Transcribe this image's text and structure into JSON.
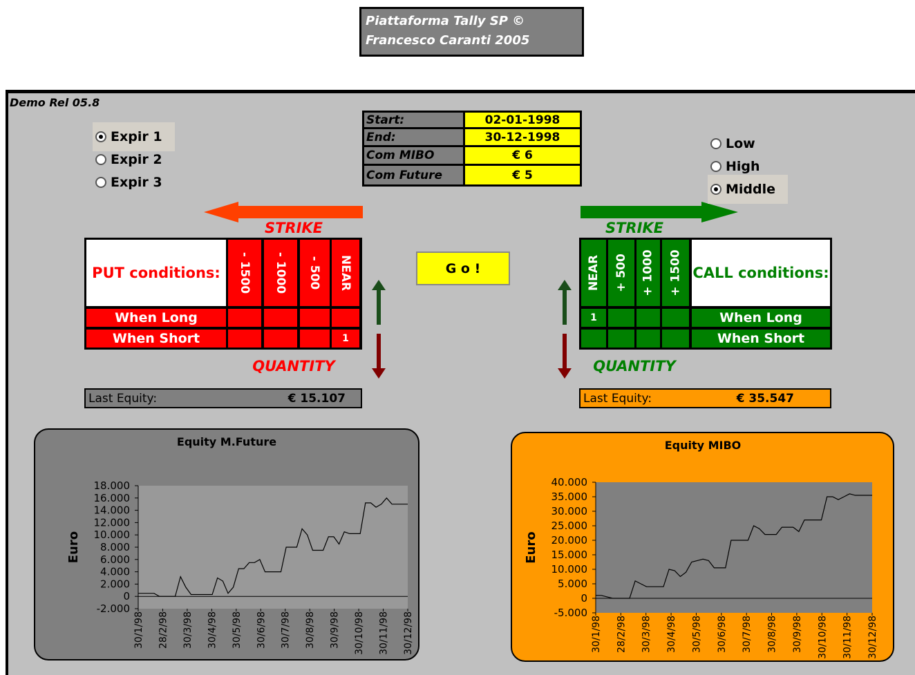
{
  "header": {
    "line1": "Piattaforma Tally SP ©",
    "line2": "Francesco Caranti 2005"
  },
  "release": "Demo Rel 05.8",
  "expiry_options": [
    {
      "label": "Expir 1",
      "selected": true
    },
    {
      "label": "Expir 2",
      "selected": false
    },
    {
      "label": "Expir 3",
      "selected": false
    }
  ],
  "strike_mode_options": [
    {
      "label": "Low",
      "selected": false
    },
    {
      "label": "High",
      "selected": false
    },
    {
      "label": "Middle",
      "selected": true
    }
  ],
  "settings": [
    {
      "label": "Start:",
      "value": "02-01-1998"
    },
    {
      "label": "End:",
      "value": "30-12-1998"
    },
    {
      "label": "Com MIBO",
      "value": "€ 6"
    },
    {
      "label": "Com Future",
      "value": "€ 5"
    }
  ],
  "go_button": "G o !",
  "put": {
    "strike_label": "STRIKE",
    "quantity_label": "QUANTITY",
    "title": "PUT conditions:",
    "strikes": [
      "- 1500",
      "- 1000",
      "- 500",
      "NEAR"
    ],
    "rows": [
      {
        "label": "When Long",
        "cells": [
          null,
          null,
          null,
          null
        ]
      },
      {
        "label": "When Short",
        "cells": [
          null,
          null,
          null,
          1
        ]
      }
    ],
    "last_equity": {
      "label": "Last Equity:",
      "value": "€ 15.107"
    }
  },
  "call": {
    "strike_label": "STRIKE",
    "quantity_label": "QUANTITY",
    "title": "CALL conditions:",
    "strikes": [
      "NEAR",
      "+ 500",
      "+ 1000",
      "+ 1500"
    ],
    "rows": [
      {
        "label": "When Long",
        "cells": [
          1,
          null,
          null,
          null
        ]
      },
      {
        "label": "When Short",
        "cells": [
          null,
          null,
          null,
          null
        ]
      }
    ],
    "last_equity": {
      "label": "Last Equity:",
      "value": "€ 35.547"
    }
  },
  "chart_data": [
    {
      "type": "line",
      "title": "Equity M.Future",
      "y_label": "Euro",
      "background": "#808080",
      "plot_color": "#999999",
      "x_tick_labels": [
        "30/1/98",
        "28/2/98",
        "30/3/98",
        "30/4/98",
        "30/5/98",
        "30/6/98",
        "30/7/98",
        "30/8/98",
        "30/9/98",
        "30/10/98",
        "30/11/98",
        "30/12/98"
      ],
      "series": [
        {
          "color": "#000000",
          "values": [
            500,
            500,
            500,
            500,
            0,
            0,
            0,
            0,
            3200,
            1500,
            300,
            300,
            300,
            300,
            300,
            3000,
            2500,
            500,
            1500,
            4500,
            4500,
            5500,
            5500,
            6000,
            4000,
            4000,
            4000,
            4000,
            8000,
            8000,
            8000,
            11000,
            10000,
            7500,
            7500,
            7500,
            9700,
            9700,
            8500,
            10500,
            10200,
            10200,
            10200,
            15200,
            15200,
            14500,
            15000,
            16000,
            15000,
            15000,
            15000,
            15000
          ]
        }
      ],
      "ylim": [
        -2000,
        18000
      ],
      "yticks": [
        {
          "value": -2000,
          "label": "-2.000"
        },
        0,
        {
          "value": 2000,
          "label": "2.000"
        },
        {
          "value": 4000,
          "label": "4.000"
        },
        {
          "value": 6000,
          "label": "6.000"
        },
        {
          "value": 8000,
          "label": "8.000"
        },
        {
          "value": 10000,
          "label": "10.000"
        },
        {
          "value": 12000,
          "label": "12.000"
        },
        {
          "value": 14000,
          "label": "14.000"
        },
        {
          "value": 16000,
          "label": "16.000"
        },
        {
          "value": 18000,
          "label": "18.000"
        }
      ]
    },
    {
      "type": "line",
      "title": "Equity MIBO",
      "y_label": "Euro",
      "background": "#ff9900",
      "plot_color": "#808080",
      "x_tick_labels": [
        "30/1/98",
        "28/2/98",
        "30/3/98",
        "30/4/98",
        "30/5/98",
        "30/6/98",
        "30/7/98",
        "30/8/98",
        "30/9/98",
        "30/10/98",
        "30/11/98",
        "30/12/98"
      ],
      "series": [
        {
          "color": "#000000",
          "values": [
            1000,
            1000,
            500,
            0,
            0,
            0,
            0,
            6000,
            5000,
            4000,
            4000,
            4000,
            4000,
            10000,
            9500,
            7500,
            9000,
            12500,
            13000,
            13500,
            13000,
            10500,
            10500,
            10500,
            20000,
            20000,
            20000,
            20000,
            25000,
            24000,
            22000,
            22000,
            22000,
            24500,
            24500,
            24500,
            23000,
            27000,
            27000,
            27000,
            27000,
            35000,
            35000,
            34000,
            35000,
            36000,
            35500,
            35500,
            35500,
            35500
          ]
        }
      ],
      "ylim": [
        -5000,
        40000
      ],
      "yticks": [
        {
          "value": -5000,
          "label": "-5.000"
        },
        0,
        {
          "value": 5000,
          "label": "5.000"
        },
        {
          "value": 10000,
          "label": "10.000"
        },
        {
          "value": 15000,
          "label": "15.000"
        },
        {
          "value": 20000,
          "label": "20.000"
        },
        {
          "value": 25000,
          "label": "25.000"
        },
        {
          "value": 30000,
          "label": "30.000"
        },
        {
          "value": 35000,
          "label": "35.000"
        },
        {
          "value": 40000,
          "label": "40.000"
        }
      ]
    }
  ]
}
